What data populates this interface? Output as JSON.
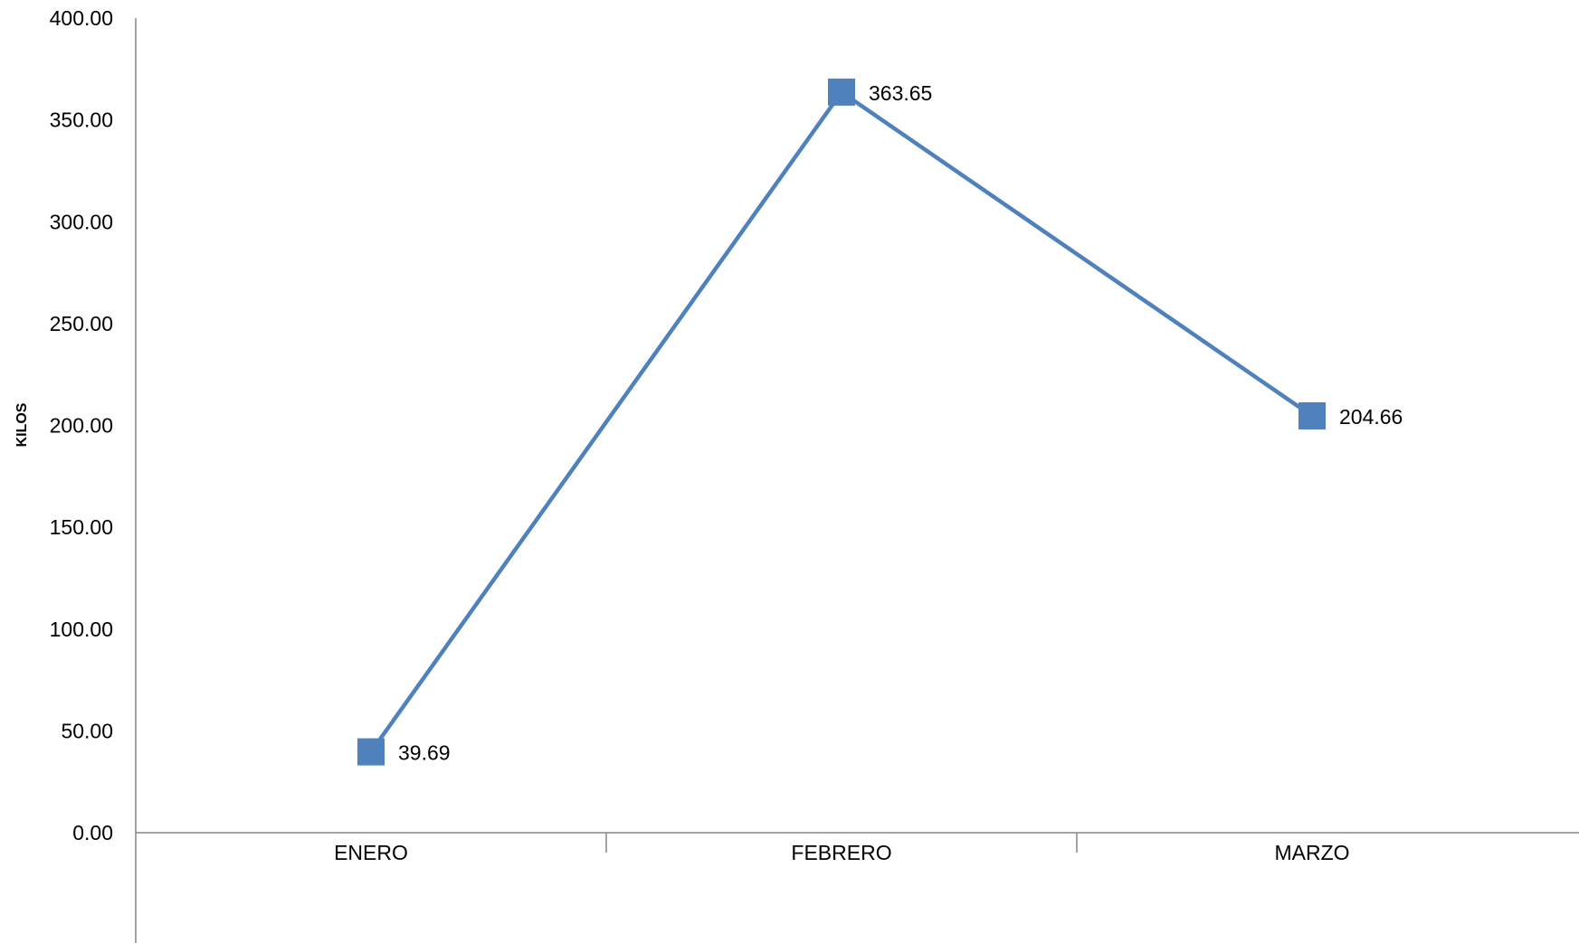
{
  "chart_data": {
    "type": "line",
    "title": "",
    "xlabel": "",
    "ylabel": "KILOS",
    "categories": [
      "ENERO",
      "FEBRERO",
      "MARZO"
    ],
    "series": [
      {
        "values": [
          39.69,
          363.65,
          204.66
        ],
        "data_labels": [
          "39.69",
          "363.65",
          "204.66"
        ],
        "color": "#4F81BD",
        "marker": "square"
      }
    ],
    "ylim": [
      0,
      400
    ],
    "y_ticks": [
      "0.00",
      "50.00",
      "100.00",
      "150.00",
      "200.00",
      "250.00",
      "300.00",
      "350.00",
      "400.00"
    ],
    "grid": false,
    "legend": "none"
  }
}
